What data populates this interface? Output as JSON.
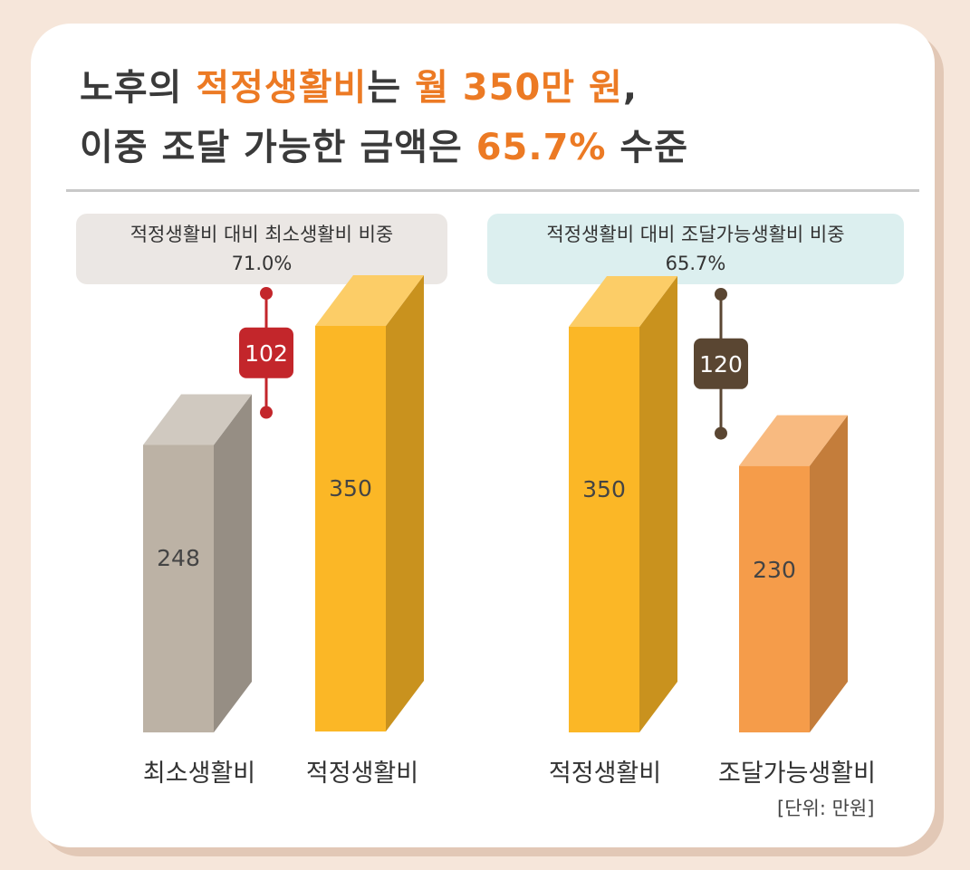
{
  "headline": {
    "line1": [
      {
        "text": "노후의 ",
        "hl": false
      },
      {
        "text": "적정생활비",
        "hl": true
      },
      {
        "text": "는 ",
        "hl": false
      },
      {
        "text": "월 350만 원",
        "hl": true
      },
      {
        "text": ",",
        "hl": false
      }
    ],
    "line2": [
      {
        "text": "이중 조달 가능한 금액은 ",
        "hl": false
      },
      {
        "text": "65.7%",
        "hl": true
      },
      {
        "text": " 수준",
        "hl": false
      }
    ]
  },
  "chart_data": [
    {
      "type": "bar",
      "caption_title": "적정생활비 대비 최소생활비 비중",
      "caption_value": "71.0%",
      "categories": [
        "최소생활비",
        "적정생활비"
      ],
      "values": [
        248,
        350
      ],
      "difference": 102,
      "colors": [
        "#bcb2a5",
        "#fbb726"
      ]
    },
    {
      "type": "bar",
      "caption_title": "적정생활비 대비 조달가능생활비 비중",
      "caption_value": "65.7%",
      "categories": [
        "적정생활비",
        "조달가능생활비"
      ],
      "values": [
        350,
        230
      ],
      "difference": 120,
      "colors": [
        "#fbb726",
        "#f59c4a"
      ]
    }
  ],
  "unit_label": "[단위: 만원]",
  "colors": {
    "accent": "#ec7a24",
    "diff_left": "#c3262b",
    "diff_right": "#5a4632"
  }
}
